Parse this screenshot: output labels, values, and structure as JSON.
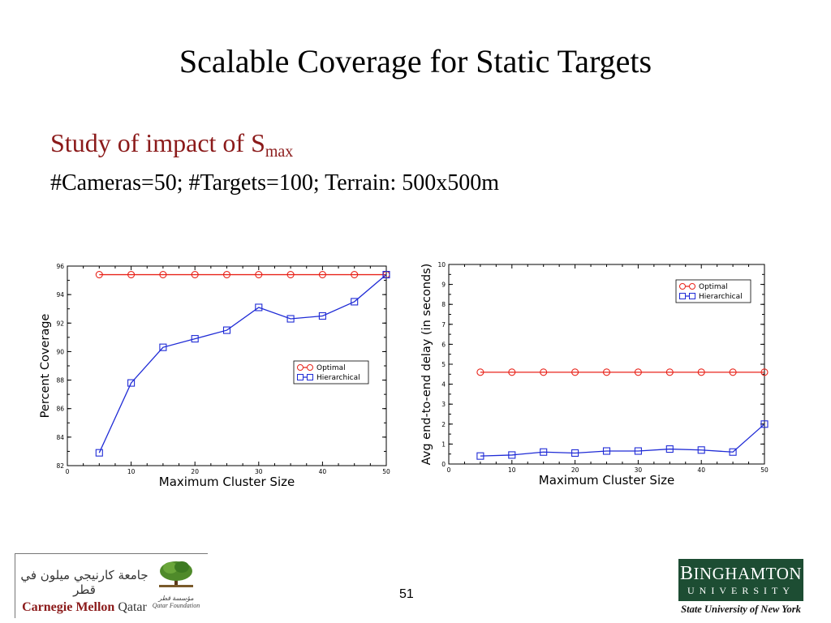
{
  "slide": {
    "title": "Scalable Coverage for Static Targets",
    "subtitle_main": "Study of impact of S",
    "subtitle_sub": "max",
    "params": "#Cameras=50; #Targets=100; Terrain: 500x500m",
    "page_number": "51"
  },
  "footer": {
    "cmu_arabic": "جامعة كارنيجي ميلون في قطر",
    "cmu_name": "Carnegie Mellon",
    "cmu_name_suffix": "Qatar",
    "qf_arabic": "مؤسسة قطر",
    "qf_name": "Qatar Foundation",
    "bu_name_first": "B",
    "bu_name_rest": "INGHAMTON",
    "bu_univ": "UNIVERSITY",
    "bu_tagline": "State University of New York"
  },
  "colors": {
    "optimal": "#e8241b",
    "hierarchical": "#1f2bd6",
    "subtitle": "#8b1a1a",
    "bu_green": "#1d4d33"
  },
  "chart_data": [
    {
      "type": "line",
      "xlabel": "Maximum Cluster Size",
      "ylabel": "Percent Coverage",
      "xlim": [
        0,
        50
      ],
      "ylim": [
        82,
        96
      ],
      "xticks": [
        0,
        10,
        20,
        30,
        40,
        50
      ],
      "yticks": [
        82,
        84,
        86,
        88,
        90,
        92,
        94,
        96
      ],
      "legend_position": "right-middle",
      "x": [
        5,
        10,
        15,
        20,
        25,
        30,
        35,
        40,
        45,
        50
      ],
      "series": [
        {
          "name": "Optimal",
          "marker": "circle",
          "values": [
            95.4,
            95.4,
            95.4,
            95.4,
            95.4,
            95.4,
            95.4,
            95.4,
            95.4,
            95.4
          ]
        },
        {
          "name": "Hierarchical",
          "marker": "square",
          "values": [
            82.9,
            87.8,
            90.3,
            90.9,
            91.5,
            93.1,
            92.3,
            92.5,
            93.5,
            95.4
          ]
        }
      ]
    },
    {
      "type": "line",
      "xlabel": "Maximum Cluster Size",
      "ylabel": "Avg end-to-end delay (in seconds)",
      "xlim": [
        0,
        50
      ],
      "ylim": [
        0,
        10
      ],
      "xticks": [
        0,
        10,
        20,
        30,
        40,
        50
      ],
      "yticks": [
        0,
        1,
        2,
        3,
        4,
        5,
        6,
        7,
        8,
        9,
        10
      ],
      "legend_position": "top-right",
      "x": [
        5,
        10,
        15,
        20,
        25,
        30,
        35,
        40,
        45,
        50
      ],
      "series": [
        {
          "name": "Optimal",
          "marker": "circle",
          "values": [
            4.6,
            4.6,
            4.6,
            4.6,
            4.6,
            4.6,
            4.6,
            4.6,
            4.6,
            4.6
          ]
        },
        {
          "name": "Hierarchical",
          "marker": "square",
          "values": [
            0.4,
            0.45,
            0.6,
            0.55,
            0.65,
            0.65,
            0.75,
            0.7,
            0.6,
            2.0
          ]
        }
      ]
    }
  ]
}
